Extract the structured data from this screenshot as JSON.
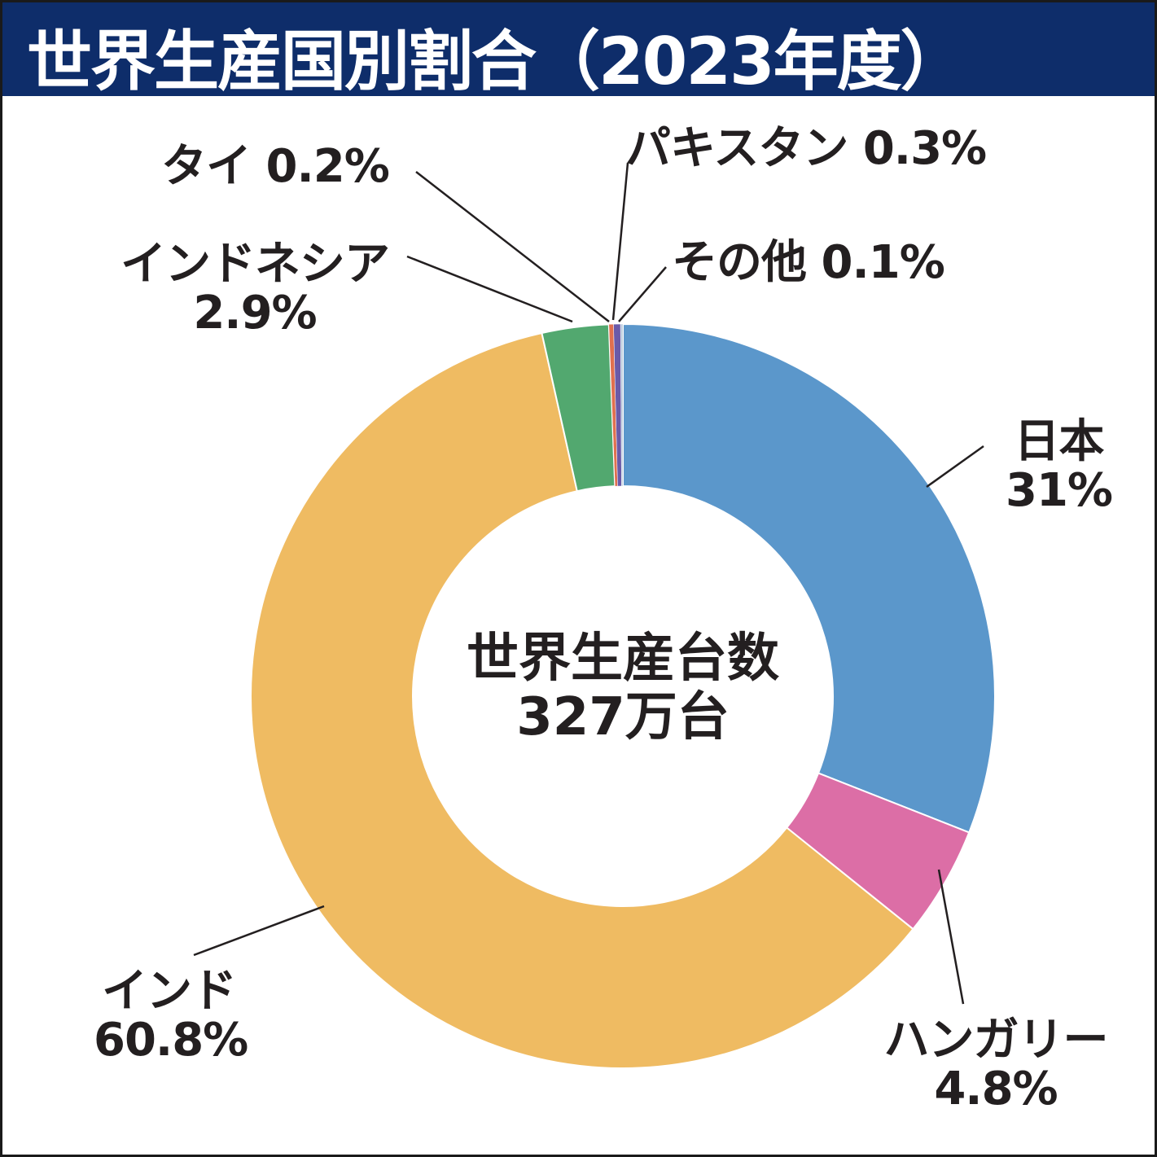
{
  "chart_data": {
    "type": "pie",
    "title": "世界生産国別割合（2023年度）",
    "center_label": [
      "世界生産台数",
      "327万台"
    ],
    "slices": [
      {
        "name": "日本",
        "value": 31,
        "label": "31%",
        "color": "#5b97cb"
      },
      {
        "name": "ハンガリー",
        "value": 4.8,
        "label": "4.8%",
        "color": "#dc6ea6"
      },
      {
        "name": "インド",
        "value": 60.8,
        "label": "60.8%",
        "color": "#efbb62"
      },
      {
        "name": "インドネシア",
        "value": 2.9,
        "label": "2.9%",
        "color": "#52a86f"
      },
      {
        "name": "タイ",
        "value": 0.2,
        "label": "0.2%",
        "color": "#e0704f"
      },
      {
        "name": "パキスタン",
        "value": 0.3,
        "label": "0.3%",
        "color": "#6a5aa8"
      },
      {
        "name": "その他",
        "value": 0.1,
        "label": "0.1%",
        "color": "#b8c8dc"
      }
    ],
    "legend": "none"
  }
}
